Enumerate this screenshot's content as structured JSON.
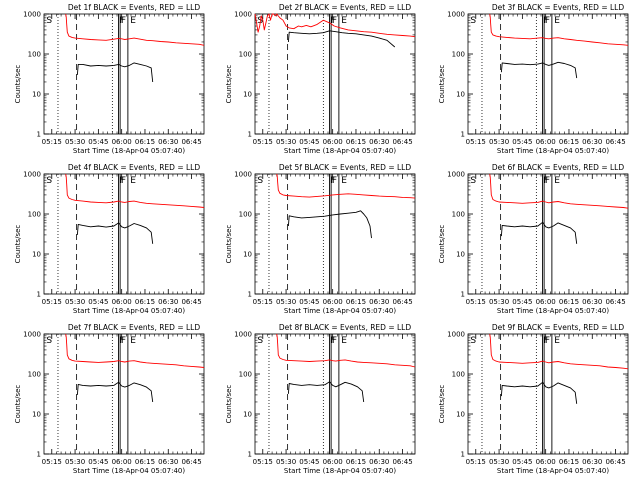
{
  "page": {
    "background": "#ffffff"
  },
  "colors": {
    "events": "#000000",
    "lld": "#ff0000",
    "axes": "#000000"
  },
  "shared": {
    "xlabel": "Start Time (18-Apr-04 05:07:40)",
    "ylabel": "Counts/sec",
    "xticks": [
      "05:15",
      "05:30",
      "05:45",
      "06:00",
      "06:15",
      "06:30",
      "06:45"
    ],
    "yticks": [
      "1",
      "10",
      "100",
      "1000"
    ],
    "marker_labels": [
      "S",
      "F",
      "F",
      "E"
    ]
  },
  "chart_data": [
    {
      "type": "line",
      "title": "Det 1f BLACK = Events, RED = LLD",
      "x_range_min": [
        0,
        103
      ],
      "ylim": [
        1,
        1000
      ],
      "y_scale": "log",
      "dotted_x": [
        9,
        44
      ],
      "dashed_x": [
        21
      ],
      "solid_x": [
        48,
        49,
        54
      ],
      "series": [
        {
          "color": "#ff0000",
          "x": [
            14,
            14.3,
            14.6,
            15,
            16,
            18,
            20,
            25,
            30,
            35,
            40,
            45,
            48,
            50,
            52,
            55,
            58,
            62,
            66,
            70,
            75,
            80,
            85,
            90,
            95,
            100,
            103
          ],
          "y": [
            1100,
            850,
            550,
            350,
            280,
            260,
            250,
            240,
            230,
            225,
            220,
            235,
            245,
            240,
            230,
            240,
            250,
            235,
            220,
            215,
            205,
            200,
            190,
            185,
            180,
            175,
            165
          ]
        },
        {
          "color": "#000000",
          "x": [
            21.5,
            22,
            25,
            30,
            35,
            40,
            45,
            48,
            50,
            52,
            55,
            58,
            62,
            66,
            69,
            70
          ],
          "y": [
            30,
            55,
            55,
            50,
            52,
            50,
            52,
            55,
            50,
            48,
            52,
            60,
            55,
            50,
            45,
            20
          ]
        }
      ]
    },
    {
      "type": "line",
      "title": "Det 2f BLACK = Events, RED = LLD",
      "x_range_min": [
        0,
        103
      ],
      "ylim": [
        1,
        1000
      ],
      "y_scale": "log",
      "dotted_x": [
        9,
        44
      ],
      "dashed_x": [
        21
      ],
      "solid_x": [
        48,
        49,
        54
      ],
      "series": [
        {
          "color": "#ff0000",
          "x": [
            0,
            1,
            2,
            3,
            4,
            5,
            6,
            7,
            8,
            9,
            10,
            11,
            12,
            13,
            14,
            16,
            18,
            20,
            22,
            25,
            28,
            30,
            33,
            36,
            40,
            44,
            48,
            51,
            55,
            60,
            65,
            70,
            75,
            80,
            85,
            90,
            95,
            100,
            103
          ],
          "y": [
            1000,
            600,
            350,
            500,
            900,
            700,
            400,
            600,
            900,
            1100,
            700,
            1000,
            1200,
            900,
            1100,
            800,
            700,
            500,
            450,
            430,
            500,
            480,
            520,
            480,
            550,
            700,
            600,
            500,
            450,
            400,
            380,
            360,
            350,
            330,
            310,
            300,
            290,
            280,
            270
          ]
        },
        {
          "color": "#000000",
          "x": [
            21.5,
            22,
            25,
            30,
            35,
            40,
            44,
            48,
            52,
            56,
            60,
            65,
            70,
            75,
            80,
            85,
            90
          ],
          "y": [
            200,
            350,
            340,
            330,
            320,
            330,
            340,
            380,
            360,
            340,
            330,
            320,
            300,
            280,
            250,
            220,
            150
          ]
        }
      ]
    },
    {
      "type": "line",
      "title": "Det 3f BLACK = Events, RED = LLD",
      "x_range_min": [
        0,
        103
      ],
      "ylim": [
        1,
        1000
      ],
      "y_scale": "log",
      "dotted_x": [
        9,
        44
      ],
      "dashed_x": [
        21
      ],
      "solid_x": [
        48,
        49,
        54
      ],
      "series": [
        {
          "color": "#ff0000",
          "x": [
            14,
            14.3,
            14.6,
            15,
            16,
            18,
            20,
            25,
            30,
            35,
            40,
            45,
            48,
            50,
            52,
            55,
            58,
            62,
            66,
            70,
            75,
            80,
            85,
            90,
            95,
            100,
            103
          ],
          "y": [
            1100,
            850,
            550,
            350,
            300,
            280,
            270,
            260,
            250,
            245,
            240,
            250,
            255,
            245,
            240,
            250,
            255,
            240,
            230,
            220,
            210,
            200,
            190,
            180,
            175,
            170,
            165
          ]
        },
        {
          "color": "#000000",
          "x": [
            21.5,
            22,
            25,
            30,
            35,
            40,
            45,
            48,
            50,
            52,
            55,
            58,
            62,
            66,
            69,
            70
          ],
          "y": [
            35,
            60,
            58,
            55,
            56,
            54,
            56,
            60,
            55,
            52,
            56,
            62,
            58,
            52,
            45,
            25
          ]
        }
      ]
    },
    {
      "type": "line",
      "title": "Det 4f BLACK = Events, RED = LLD",
      "x_range_min": [
        0,
        103
      ],
      "ylim": [
        1,
        1000
      ],
      "y_scale": "log",
      "dotted_x": [
        9,
        44
      ],
      "dashed_x": [
        21
      ],
      "solid_x": [
        48,
        49,
        54
      ],
      "series": [
        {
          "color": "#ff0000",
          "x": [
            14,
            14.3,
            14.6,
            15,
            16,
            18,
            20,
            25,
            30,
            35,
            40,
            45,
            48,
            50,
            52,
            55,
            58,
            62,
            66,
            70,
            75,
            80,
            85,
            90,
            95,
            100,
            103
          ],
          "y": [
            1100,
            850,
            550,
            300,
            250,
            230,
            220,
            210,
            200,
            195,
            190,
            200,
            210,
            200,
            195,
            205,
            210,
            195,
            185,
            180,
            175,
            170,
            165,
            160,
            155,
            150,
            145
          ]
        },
        {
          "color": "#000000",
          "x": [
            21.5,
            22,
            25,
            30,
            35,
            40,
            45,
            48,
            50,
            52,
            55,
            58,
            62,
            66,
            69,
            70
          ],
          "y": [
            30,
            55,
            52,
            48,
            50,
            47,
            50,
            60,
            48,
            45,
            50,
            58,
            52,
            45,
            35,
            18
          ]
        }
      ]
    },
    {
      "type": "line",
      "title": "Det 5f BLACK = Events, RED = LLD",
      "x_range_min": [
        0,
        103
      ],
      "ylim": [
        1,
        1000
      ],
      "y_scale": "log",
      "dotted_x": [
        9,
        44
      ],
      "dashed_x": [
        21
      ],
      "solid_x": [
        48,
        49,
        54
      ],
      "series": [
        {
          "color": "#ff0000",
          "x": [
            14,
            14.3,
            14.6,
            15,
            16,
            18,
            20,
            25,
            30,
            35,
            40,
            45,
            50,
            55,
            60,
            65,
            70,
            75,
            80,
            85,
            90,
            95,
            100,
            103
          ],
          "y": [
            1100,
            900,
            600,
            400,
            330,
            300,
            290,
            280,
            270,
            265,
            275,
            285,
            300,
            310,
            320,
            310,
            300,
            290,
            280,
            275,
            270,
            260,
            255,
            250
          ]
        },
        {
          "color": "#000000",
          "x": [
            21.5,
            22,
            25,
            30,
            35,
            40,
            45,
            50,
            55,
            60,
            65,
            68,
            70,
            72,
            74,
            75
          ],
          "y": [
            50,
            90,
            85,
            80,
            82,
            85,
            88,
            95,
            100,
            105,
            110,
            120,
            100,
            80,
            50,
            25
          ]
        }
      ]
    },
    {
      "type": "line",
      "title": "Det 6f BLACK = Events, RED = LLD",
      "x_range_min": [
        0,
        103
      ],
      "ylim": [
        1,
        1000
      ],
      "y_scale": "log",
      "dotted_x": [
        9,
        44
      ],
      "dashed_x": [
        21
      ],
      "solid_x": [
        48,
        49,
        54
      ],
      "series": [
        {
          "color": "#ff0000",
          "x": [
            14,
            14.3,
            14.6,
            15,
            16,
            18,
            20,
            25,
            30,
            35,
            40,
            45,
            48,
            50,
            52,
            55,
            58,
            62,
            66,
            70,
            75,
            80,
            85,
            90,
            95,
            100,
            103
          ],
          "y": [
            1100,
            850,
            550,
            300,
            230,
            210,
            200,
            195,
            190,
            185,
            190,
            195,
            210,
            200,
            190,
            200,
            205,
            190,
            180,
            175,
            170,
            165,
            160,
            155,
            150,
            145,
            140
          ]
        },
        {
          "color": "#000000",
          "x": [
            21.5,
            22,
            25,
            30,
            35,
            40,
            45,
            48,
            50,
            52,
            55,
            58,
            62,
            66,
            69,
            70
          ],
          "y": [
            28,
            52,
            50,
            48,
            50,
            48,
            50,
            62,
            48,
            45,
            50,
            60,
            52,
            45,
            35,
            18
          ]
        }
      ]
    },
    {
      "type": "line",
      "title": "Det 7f BLACK = Events, RED = LLD",
      "x_range_min": [
        0,
        103
      ],
      "ylim": [
        1,
        1000
      ],
      "y_scale": "log",
      "dotted_x": [
        9,
        44
      ],
      "dashed_x": [
        21
      ],
      "solid_x": [
        48,
        49,
        54
      ],
      "series": [
        {
          "color": "#ff0000",
          "x": [
            14,
            14.3,
            14.6,
            15,
            16,
            18,
            20,
            25,
            30,
            35,
            40,
            45,
            48,
            50,
            52,
            55,
            58,
            62,
            66,
            70,
            75,
            80,
            85,
            90,
            95,
            100,
            103
          ],
          "y": [
            1100,
            850,
            550,
            300,
            240,
            220,
            210,
            205,
            200,
            195,
            200,
            205,
            215,
            205,
            200,
            210,
            215,
            200,
            190,
            185,
            180,
            175,
            170,
            160,
            155,
            150,
            145
          ]
        },
        {
          "color": "#000000",
          "x": [
            21.5,
            22,
            25,
            30,
            35,
            40,
            45,
            48,
            50,
            52,
            55,
            58,
            62,
            66,
            69,
            70
          ],
          "y": [
            30,
            55,
            52,
            50,
            52,
            50,
            52,
            62,
            50,
            47,
            52,
            60,
            54,
            47,
            38,
            20
          ]
        }
      ]
    },
    {
      "type": "line",
      "title": "Det 8f BLACK = Events, RED = LLD",
      "x_range_min": [
        0,
        103
      ],
      "ylim": [
        1,
        1000
      ],
      "y_scale": "log",
      "dotted_x": [
        9,
        44
      ],
      "dashed_x": [
        21
      ],
      "solid_x": [
        48,
        49,
        54
      ],
      "series": [
        {
          "color": "#ff0000",
          "x": [
            14,
            14.3,
            14.6,
            15,
            16,
            18,
            20,
            25,
            30,
            35,
            40,
            45,
            48,
            50,
            52,
            55,
            58,
            62,
            66,
            70,
            75,
            80,
            85,
            90,
            95,
            100,
            103
          ],
          "y": [
            1100,
            850,
            550,
            300,
            250,
            230,
            220,
            215,
            210,
            205,
            210,
            215,
            225,
            215,
            210,
            220,
            225,
            210,
            200,
            195,
            190,
            185,
            180,
            170,
            165,
            160,
            150
          ]
        },
        {
          "color": "#000000",
          "x": [
            21.5,
            22,
            25,
            30,
            35,
            40,
            45,
            48,
            50,
            52,
            55,
            58,
            62,
            66,
            69,
            70
          ],
          "y": [
            32,
            58,
            55,
            52,
            54,
            52,
            54,
            64,
            52,
            48,
            54,
            62,
            56,
            48,
            38,
            20
          ]
        }
      ]
    },
    {
      "type": "line",
      "title": "Det 9f BLACK = Events, RED = LLD",
      "x_range_min": [
        0,
        103
      ],
      "ylim": [
        1,
        1000
      ],
      "y_scale": "log",
      "dotted_x": [
        9,
        44
      ],
      "dashed_x": [
        21
      ],
      "solid_x": [
        48,
        49,
        54
      ],
      "series": [
        {
          "color": "#ff0000",
          "x": [
            14,
            14.3,
            14.6,
            15,
            16,
            18,
            20,
            25,
            30,
            35,
            40,
            45,
            48,
            50,
            52,
            55,
            58,
            62,
            66,
            70,
            75,
            80,
            85,
            90,
            95,
            100,
            103
          ],
          "y": [
            1100,
            850,
            550,
            300,
            230,
            210,
            200,
            195,
            190,
            185,
            190,
            195,
            210,
            200,
            190,
            200,
            205,
            190,
            180,
            175,
            170,
            165,
            160,
            150,
            145,
            140,
            135
          ]
        },
        {
          "color": "#000000",
          "x": [
            21.5,
            22,
            25,
            30,
            35,
            40,
            45,
            48,
            50,
            52,
            55,
            58,
            62,
            66,
            69,
            70
          ],
          "y": [
            28,
            52,
            50,
            48,
            50,
            48,
            50,
            62,
            48,
            45,
            50,
            60,
            52,
            45,
            35,
            18
          ]
        }
      ]
    }
  ]
}
